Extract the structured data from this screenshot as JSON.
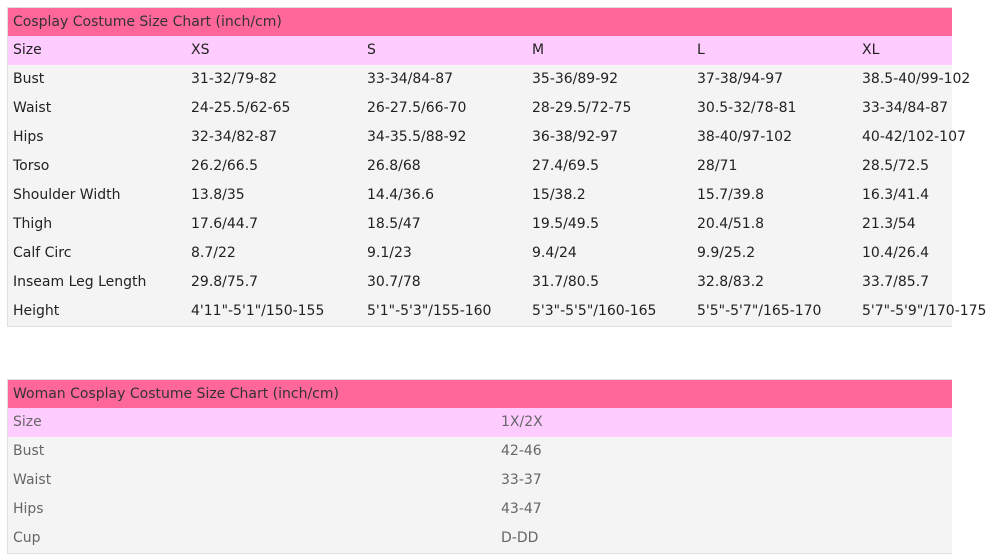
{
  "chart1": {
    "title": "Cosplay Costume Size Chart (inch/cm)",
    "header": [
      "Size",
      "XS",
      "S",
      "M",
      "L",
      "XL"
    ],
    "rows": [
      [
        "Bust",
        "31-32/79-82",
        "33-34/84-87",
        "35-36/89-92",
        "37-38/94-97",
        "38.5-40/99-102"
      ],
      [
        "Waist",
        "24-25.5/62-65",
        "26-27.5/66-70",
        "28-29.5/72-75",
        "30.5-32/78-81",
        "33-34/84-87"
      ],
      [
        "Hips",
        "32-34/82-87",
        "34-35.5/88-92",
        "36-38/92-97",
        "38-40/97-102",
        "40-42/102-107"
      ],
      [
        "Torso",
        "26.2/66.5",
        "26.8/68",
        "27.4/69.5",
        "28/71",
        "28.5/72.5"
      ],
      [
        "Shoulder Width",
        "13.8/35",
        "14.4/36.6",
        "15/38.2",
        "15.7/39.8",
        "16.3/41.4"
      ],
      [
        "Thigh",
        "17.6/44.7",
        "18.5/47",
        "19.5/49.5",
        "20.4/51.8",
        "21.3/54"
      ],
      [
        "Calf Circ",
        "8.7/22",
        "9.1/23",
        "9.4/24",
        "9.9/25.2",
        "10.4/26.4"
      ],
      [
        "Inseam Leg Length",
        "29.8/75.7",
        "30.7/78",
        "31.7/80.5",
        "32.8/83.2",
        "33.7/85.7"
      ],
      [
        "Height",
        "4'11\"-5'1\"/150-155",
        "5'1\"-5'3\"/155-160",
        "5'3\"-5'5\"/160-165",
        "5'5\"-5'7\"/165-170",
        "5'7\"-5'9\"/170-175"
      ]
    ]
  },
  "chart2": {
    "title": "Woman Cosplay Costume Size Chart (inch/cm)",
    "header": [
      "Size",
      "1X/2X"
    ],
    "rows": [
      [
        "Bust",
        "42-46"
      ],
      [
        "Waist",
        "33-37"
      ],
      [
        "Hips",
        "43-47"
      ],
      [
        "Cup",
        "D-DD"
      ]
    ]
  },
  "colors": {
    "title_bar": "#ff6699",
    "header_row": "#ffccff",
    "body_row": "#f4f4f4"
  }
}
